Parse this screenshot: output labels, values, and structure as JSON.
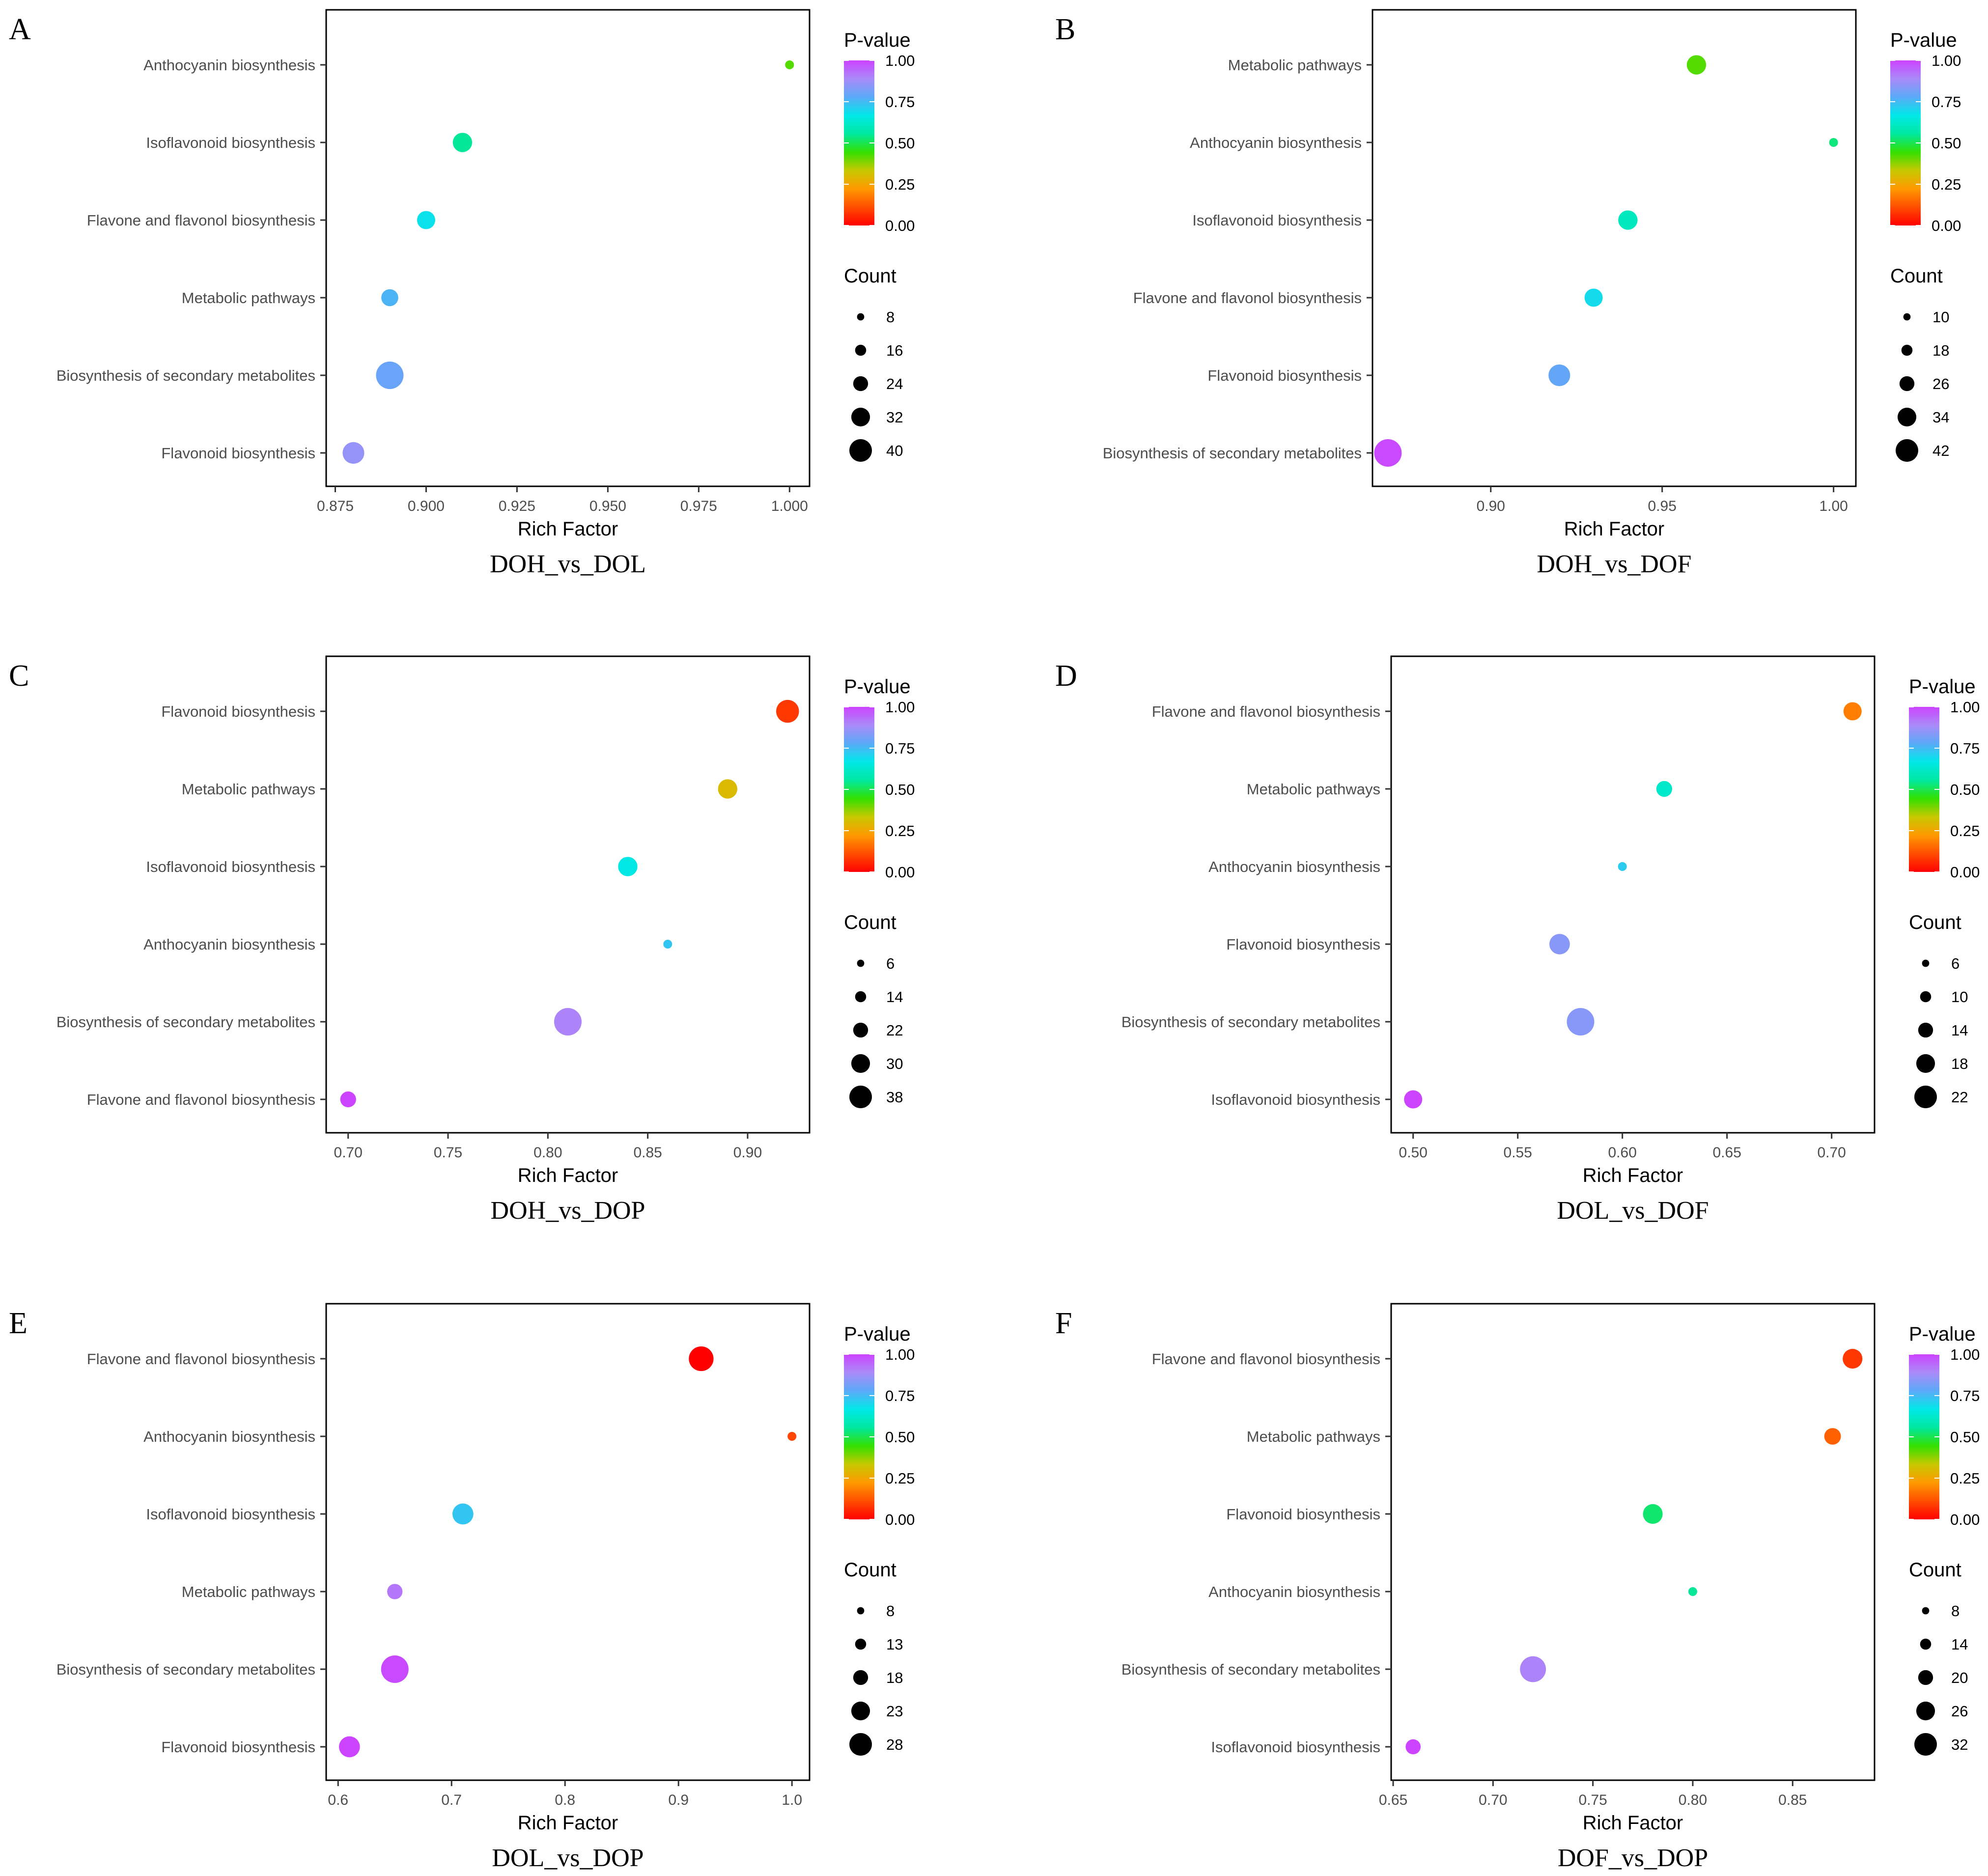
{
  "legend": {
    "color_title": "P-value",
    "size_title": "Count",
    "color_ticks": [
      "1.00",
      "0.75",
      "0.50",
      "0.25",
      "0.00"
    ],
    "color_stops": [
      "#ff0000",
      "#ff4d00",
      "#ff9a00",
      "#c8c800",
      "#33e000",
      "#00e8a0",
      "#00e8e8",
      "#5aaaf8",
      "#aa8af8",
      "#cc44ff"
    ]
  },
  "chart_data": [
    {
      "label": "A",
      "type": "scatter",
      "title": "DOH_vs_DOL",
      "xlabel": "Rich Factor",
      "xlim": [
        0.8725,
        1.0055
      ],
      "xticks": [
        0.875,
        0.9,
        0.925,
        0.95,
        0.975,
        1.0
      ],
      "xtick_labels": [
        "0.875",
        "0.900",
        "0.925",
        "0.950",
        "0.975",
        "1.000"
      ],
      "categories": [
        "Anthocyanin biosynthesis",
        "Isoflavonoid biosynthesis",
        "Flavone and flavonol biosynthesis",
        "Metabolic pathways",
        "Biosynthesis of secondary metabolites",
        "Flavonoid biosynthesis"
      ],
      "points": [
        {
          "pathway": "Anthocyanin biosynthesis",
          "rich_factor": 1.0,
          "pvalue": 0.42,
          "count": 8
        },
        {
          "pathway": "Isoflavonoid biosynthesis",
          "rich_factor": 0.91,
          "pvalue": 0.55,
          "count": 26
        },
        {
          "pathway": "Flavone and flavonol biosynthesis",
          "rich_factor": 0.9,
          "pvalue": 0.68,
          "count": 24
        },
        {
          "pathway": "Metabolic pathways",
          "rich_factor": 0.89,
          "pvalue": 0.76,
          "count": 22
        },
        {
          "pathway": "Biosynthesis of secondary metabolites",
          "rich_factor": 0.89,
          "pvalue": 0.8,
          "count": 40
        },
        {
          "pathway": "Flavonoid biosynthesis",
          "rich_factor": 0.88,
          "pvalue": 0.86,
          "count": 30
        }
      ],
      "size_legend": [
        8,
        16,
        24,
        32,
        40
      ]
    },
    {
      "label": "B",
      "type": "scatter",
      "title": "DOH_vs_DOF",
      "xlabel": "Rich Factor",
      "xlim": [
        0.8655,
        1.0065
      ],
      "xticks": [
        0.9,
        0.95,
        1.0
      ],
      "xtick_labels": [
        "0.90",
        "0.95",
        "1.00"
      ],
      "categories": [
        "Metabolic pathways",
        "Anthocyanin biosynthesis",
        "Isoflavonoid biosynthesis",
        "Flavone and flavonol biosynthesis",
        "Flavonoid biosynthesis",
        "Biosynthesis of secondary metabolites"
      ],
      "points": [
        {
          "pathway": "Metabolic pathways",
          "rich_factor": 0.96,
          "pvalue": 0.42,
          "count": 28
        },
        {
          "pathway": "Anthocyanin biosynthesis",
          "rich_factor": 1.0,
          "pvalue": 0.53,
          "count": 10
        },
        {
          "pathway": "Isoflavonoid biosynthesis",
          "rich_factor": 0.94,
          "pvalue": 0.6,
          "count": 28
        },
        {
          "pathway": "Flavone and flavonol biosynthesis",
          "rich_factor": 0.93,
          "pvalue": 0.69,
          "count": 26
        },
        {
          "pathway": "Flavonoid biosynthesis",
          "rich_factor": 0.92,
          "pvalue": 0.79,
          "count": 32
        },
        {
          "pathway": "Biosynthesis of secondary metabolites",
          "rich_factor": 0.87,
          "pvalue": 0.99,
          "count": 42
        }
      ],
      "size_legend": [
        10,
        18,
        26,
        34,
        42
      ]
    },
    {
      "label": "C",
      "type": "scatter",
      "title": "DOH_vs_DOP",
      "xlabel": "Rich Factor",
      "xlim": [
        0.689,
        0.931
      ],
      "xticks": [
        0.7,
        0.75,
        0.8,
        0.85,
        0.9
      ],
      "xtick_labels": [
        "0.70",
        "0.75",
        "0.80",
        "0.85",
        "0.90"
      ],
      "categories": [
        "Flavonoid biosynthesis",
        "Metabolic pathways",
        "Isoflavonoid biosynthesis",
        "Anthocyanin biosynthesis",
        "Biosynthesis of secondary metabolites",
        "Flavone and flavonol biosynthesis"
      ],
      "points": [
        {
          "pathway": "Flavonoid biosynthesis",
          "rich_factor": 0.92,
          "pvalue": 0.08,
          "count": 30
        },
        {
          "pathway": "Metabolic pathways",
          "rich_factor": 0.89,
          "pvalue": 0.3,
          "count": 24
        },
        {
          "pathway": "Isoflavonoid biosynthesis",
          "rich_factor": 0.84,
          "pvalue": 0.66,
          "count": 24
        },
        {
          "pathway": "Anthocyanin biosynthesis",
          "rich_factor": 0.86,
          "pvalue": 0.73,
          "count": 6
        },
        {
          "pathway": "Biosynthesis of secondary metabolites",
          "rich_factor": 0.81,
          "pvalue": 0.9,
          "count": 38
        },
        {
          "pathway": "Flavone and flavonol biosynthesis",
          "rich_factor": 0.7,
          "pvalue": 1.0,
          "count": 18
        }
      ],
      "size_legend": [
        6,
        14,
        22,
        30,
        38
      ]
    },
    {
      "label": "D",
      "type": "scatter",
      "title": "DOL_vs_DOF",
      "xlabel": "Rich Factor",
      "xlim": [
        0.4895,
        0.7205
      ],
      "xticks": [
        0.5,
        0.55,
        0.6,
        0.65,
        0.7
      ],
      "xtick_labels": [
        "0.50",
        "0.55",
        "0.60",
        "0.65",
        "0.70"
      ],
      "categories": [
        "Flavone and flavonol biosynthesis",
        "Metabolic pathways",
        "Anthocyanin biosynthesis",
        "Flavonoid biosynthesis",
        "Biosynthesis of secondary metabolites",
        "Isoflavonoid biosynthesis"
      ],
      "points": [
        {
          "pathway": "Flavone and flavonol biosynthesis",
          "rich_factor": 0.71,
          "pvalue": 0.18,
          "count": 14
        },
        {
          "pathway": "Metabolic pathways",
          "rich_factor": 0.62,
          "pvalue": 0.62,
          "count": 12
        },
        {
          "pathway": "Anthocyanin biosynthesis",
          "rich_factor": 0.6,
          "pvalue": 0.72,
          "count": 6
        },
        {
          "pathway": "Flavonoid biosynthesis",
          "rich_factor": 0.57,
          "pvalue": 0.84,
          "count": 16
        },
        {
          "pathway": "Biosynthesis of secondary metabolites",
          "rich_factor": 0.58,
          "pvalue": 0.84,
          "count": 22
        },
        {
          "pathway": "Isoflavonoid biosynthesis",
          "rich_factor": 0.5,
          "pvalue": 1.0,
          "count": 14
        }
      ],
      "size_legend": [
        6,
        10,
        14,
        18,
        22
      ]
    },
    {
      "label": "E",
      "type": "scatter",
      "title": "DOL_vs_DOP",
      "xlabel": "Rich Factor",
      "xlim": [
        0.5895,
        1.0155
      ],
      "xticks": [
        0.6,
        0.7,
        0.8,
        0.9,
        1.0
      ],
      "xtick_labels": [
        "0.6",
        "0.7",
        "0.8",
        "0.9",
        "1.0"
      ],
      "categories": [
        "Flavone and flavonol biosynthesis",
        "Anthocyanin biosynthesis",
        "Isoflavonoid biosynthesis",
        "Metabolic pathways",
        "Biosynthesis of secondary metabolites",
        "Flavonoid biosynthesis"
      ],
      "points": [
        {
          "pathway": "Flavone and flavonol biosynthesis",
          "rich_factor": 0.92,
          "pvalue": 0.0,
          "count": 25
        },
        {
          "pathway": "Anthocyanin biosynthesis",
          "rich_factor": 1.0,
          "pvalue": 0.1,
          "count": 8
        },
        {
          "pathway": "Isoflavonoid biosynthesis",
          "rich_factor": 0.71,
          "pvalue": 0.73,
          "count": 21
        },
        {
          "pathway": "Metabolic pathways",
          "rich_factor": 0.65,
          "pvalue": 0.92,
          "count": 15
        },
        {
          "pathway": "Biosynthesis of secondary metabolites",
          "rich_factor": 0.65,
          "pvalue": 0.99,
          "count": 28
        },
        {
          "pathway": "Flavonoid biosynthesis",
          "rich_factor": 0.61,
          "pvalue": 1.0,
          "count": 21
        }
      ],
      "size_legend": [
        8,
        13,
        18,
        23,
        28
      ]
    },
    {
      "label": "F",
      "type": "scatter",
      "title": "DOF_vs_DOP",
      "xlabel": "Rich Factor",
      "xlim": [
        0.649,
        0.891
      ],
      "xticks": [
        0.65,
        0.7,
        0.75,
        0.8,
        0.85
      ],
      "xtick_labels": [
        "0.65",
        "0.70",
        "0.75",
        "0.80",
        "0.85"
      ],
      "categories": [
        "Flavone and flavonol biosynthesis",
        "Metabolic pathways",
        "Flavonoid biosynthesis",
        "Anthocyanin biosynthesis",
        "Biosynthesis of secondary metabolites",
        "Isoflavonoid biosynthesis"
      ],
      "points": [
        {
          "pathway": "Flavone and flavonol biosynthesis",
          "rich_factor": 0.88,
          "pvalue": 0.08,
          "count": 22
        },
        {
          "pathway": "Metabolic pathways",
          "rich_factor": 0.87,
          "pvalue": 0.14,
          "count": 18
        },
        {
          "pathway": "Flavonoid biosynthesis",
          "rich_factor": 0.78,
          "pvalue": 0.52,
          "count": 22
        },
        {
          "pathway": "Anthocyanin biosynthesis",
          "rich_factor": 0.8,
          "pvalue": 0.55,
          "count": 8
        },
        {
          "pathway": "Biosynthesis of secondary metabolites",
          "rich_factor": 0.72,
          "pvalue": 0.9,
          "count": 30
        },
        {
          "pathway": "Isoflavonoid biosynthesis",
          "rich_factor": 0.66,
          "pvalue": 1.0,
          "count": 16
        }
      ],
      "size_legend": [
        8,
        14,
        20,
        26,
        32
      ]
    }
  ]
}
